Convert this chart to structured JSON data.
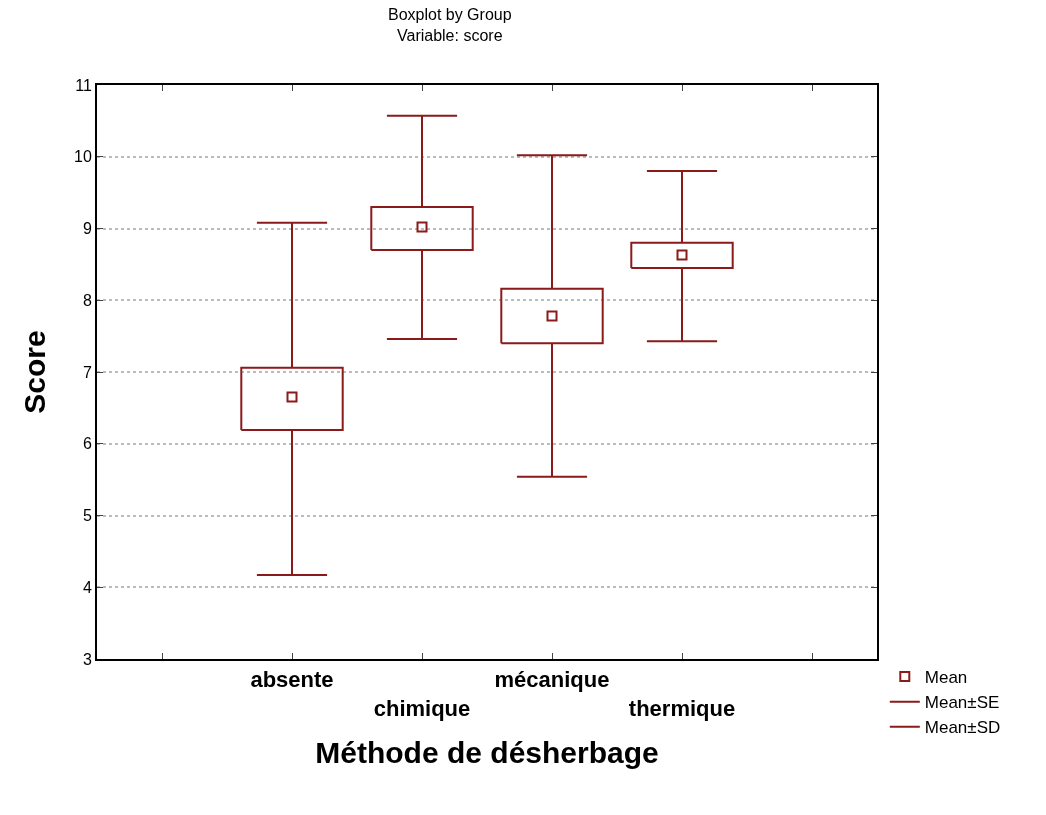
{
  "chart_data": {
    "type": "box",
    "title": "Boxplot by Group",
    "subtitle": "Variable: score",
    "xlabel": "Méthode de désherbage",
    "ylabel": "Score",
    "categories": [
      "absente",
      "chimique",
      "mécanique",
      "thermique"
    ],
    "series": [
      {
        "color": "#8b1a1a",
        "boxes": [
          {
            "low": 4.17,
            "q1": 6.19,
            "mean": 6.65,
            "q3": 7.06,
            "high": 9.08
          },
          {
            "low": 7.46,
            "q1": 8.7,
            "mean": 9.02,
            "q3": 9.3,
            "high": 10.57
          },
          {
            "low": 5.54,
            "q1": 7.4,
            "mean": 7.78,
            "q3": 8.16,
            "high": 10.02
          },
          {
            "low": 7.43,
            "q1": 8.45,
            "mean": 8.63,
            "q3": 8.8,
            "high": 9.8
          }
        ]
      }
    ],
    "annotations": [
      "Mean",
      "Mean±SE",
      "Mean±SD"
    ],
    "ylim": [
      3,
      11
    ],
    "yticks": [
      3,
      4,
      5,
      6,
      7,
      8,
      9,
      10,
      11
    ],
    "grid": "y",
    "marker": "square"
  }
}
